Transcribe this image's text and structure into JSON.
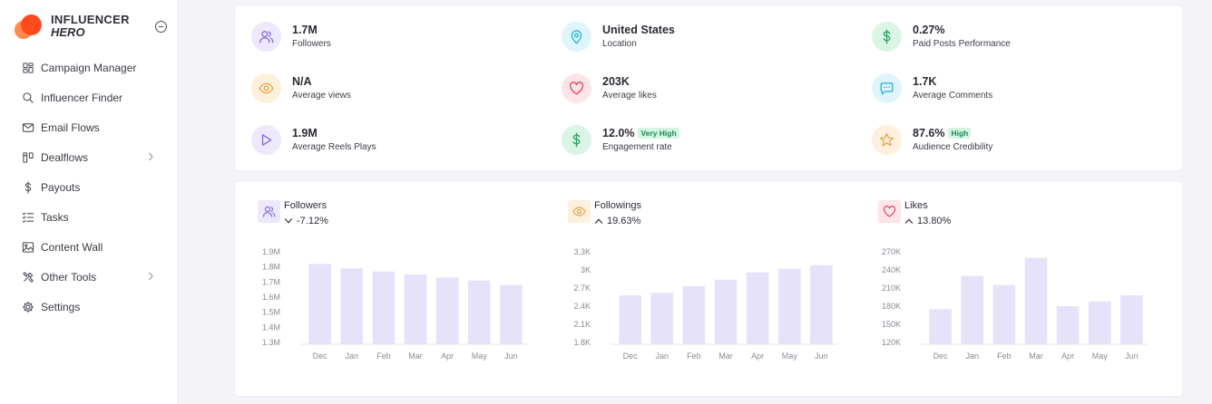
{
  "brand": {
    "name": "INFLUENCER",
    "sub": "HERO"
  },
  "nav": [
    {
      "label": "Campaign Manager",
      "icon": "layout-grid-icon"
    },
    {
      "label": "Influencer Finder",
      "icon": "search-icon"
    },
    {
      "label": "Email Flows",
      "icon": "mail-icon"
    },
    {
      "label": "Dealflows",
      "icon": "kanban-icon",
      "has_children": true
    },
    {
      "label": "Payouts",
      "icon": "dollar-icon"
    },
    {
      "label": "Tasks",
      "icon": "checklist-icon"
    },
    {
      "label": "Content Wall",
      "icon": "image-icon"
    },
    {
      "label": "Other Tools",
      "icon": "tools-icon",
      "has_children": true
    },
    {
      "label": "Settings",
      "icon": "gear-icon"
    }
  ],
  "stats": [
    {
      "value": "1.7M",
      "label": "Followers",
      "icon": "users-icon",
      "color": "#8b6fd6",
      "bg": "#ede8fb"
    },
    {
      "value": "United States",
      "label": "Location",
      "icon": "location-pin-icon",
      "color": "#2bb7d6",
      "bg": "#dff5fb"
    },
    {
      "value": "0.27%",
      "label": "Paid Posts Performance",
      "icon": "dollar-icon",
      "color": "#27a866",
      "bg": "#daf5e6"
    },
    {
      "value": "N/A",
      "label": "Average views",
      "icon": "eye-icon",
      "color": "#e6a74a",
      "bg": "#fdf0dc"
    },
    {
      "value": "203K",
      "label": "Average likes",
      "icon": "heart-icon",
      "color": "#e0475e",
      "bg": "#fde4e8"
    },
    {
      "value": "1.7K",
      "label": "Average Comments",
      "icon": "comment-icon",
      "color": "#2bb7d6",
      "bg": "#dff5fb"
    },
    {
      "value": "1.9M",
      "label": "Average Reels Plays",
      "icon": "play-icon",
      "color": "#8b6fd6",
      "bg": "#ede8fb"
    },
    {
      "value": "12.0%",
      "label": "Engagement rate",
      "icon": "dollar-icon",
      "color": "#27a866",
      "bg": "#daf5e6",
      "badge": "Very High"
    },
    {
      "value": "87.6%",
      "label": "Audience Credibility",
      "icon": "star-icon",
      "color": "#e6a74a",
      "bg": "#fdf0dc",
      "badge": "High"
    }
  ],
  "chart_data": [
    {
      "type": "bar",
      "title": "Followers",
      "change": "-7.12%",
      "direction": "down",
      "icon": "users-icon",
      "icon_color": "#8b6fd6",
      "icon_bg": "#ede8fb",
      "bar_color": "#e6e2fa",
      "categories": [
        "Dec",
        "Jan",
        "Feb",
        "Mar",
        "Apr",
        "May",
        "Jun"
      ],
      "values": [
        1.82,
        1.79,
        1.77,
        1.75,
        1.73,
        1.71,
        1.68
      ],
      "yticks": [
        "1.3M",
        "1.4M",
        "1.5M",
        "1.6M",
        "1.7M",
        "1.8M",
        "1.9M"
      ],
      "ylim": [
        1.3,
        1.9
      ]
    },
    {
      "type": "bar",
      "title": "Followings",
      "change": "19.63%",
      "direction": "up",
      "icon": "eye-icon",
      "icon_color": "#e6a74a",
      "icon_bg": "#fdf0dc",
      "bar_color": "#e6e2fa",
      "categories": [
        "Dec",
        "Jan",
        "Feb",
        "Mar",
        "Apr",
        "May",
        "Jun"
      ],
      "values": [
        2.58,
        2.62,
        2.73,
        2.84,
        2.96,
        3.02,
        3.08
      ],
      "yticks": [
        "1.8K",
        "2.1K",
        "2.4K",
        "2.7K",
        "3K",
        "3.3K"
      ],
      "ylim": [
        1.8,
        3.3
      ]
    },
    {
      "type": "bar",
      "title": "Likes",
      "change": "13.80%",
      "direction": "up",
      "icon": "heart-icon",
      "icon_color": "#e0475e",
      "icon_bg": "#fde4e8",
      "bar_color": "#e6e2fa",
      "categories": [
        "Dec",
        "Jan",
        "Feb",
        "Mar",
        "Apr",
        "May",
        "Jun"
      ],
      "values": [
        175,
        230,
        215,
        260,
        180,
        188,
        198
      ],
      "yticks": [
        "120K",
        "150K",
        "180K",
        "210K",
        "240K",
        "270K"
      ],
      "ylim": [
        120,
        270
      ]
    }
  ]
}
